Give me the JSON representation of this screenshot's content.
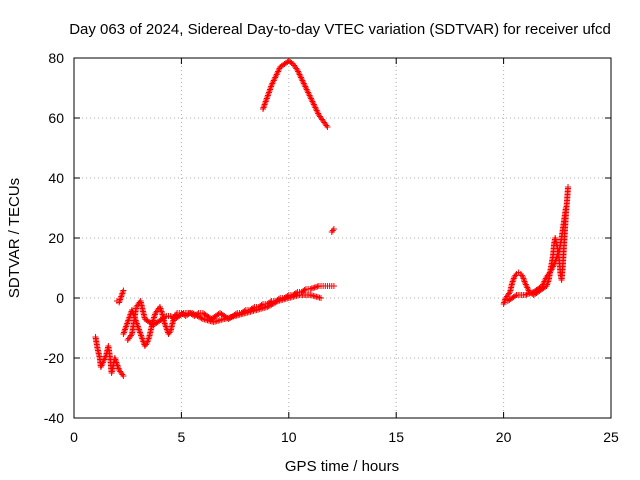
{
  "chart_data": {
    "type": "scatter",
    "title": "Day 063 of 2024, Sidereal Day-to-day VTEC variation (SDTVAR) for receiver ufcd",
    "xlabel": "GPS time / hours",
    "ylabel": "SDTVAR / TECUs",
    "xlim": [
      0,
      25
    ],
    "ylim": [
      -40,
      80
    ],
    "x_ticks": [
      0,
      5,
      10,
      15,
      20,
      25
    ],
    "y_ticks": [
      -40,
      -20,
      0,
      20,
      40,
      60,
      80
    ],
    "x_tick_labels": [
      "0",
      "5",
      "10",
      "15",
      "20",
      "25"
    ],
    "y_tick_labels": [
      "-40",
      "-20",
      "0",
      "20",
      "40",
      "60",
      "80"
    ],
    "grid": true,
    "marker": "+",
    "marker_color": "#ff0000",
    "series": [
      {
        "name": "arc-early-scatter",
        "points": [
          [
            1.0,
            -13
          ],
          [
            1.05,
            -15
          ],
          [
            1.1,
            -17
          ],
          [
            1.2,
            -20
          ],
          [
            1.25,
            -23
          ],
          [
            1.5,
            -19
          ],
          [
            1.6,
            -16
          ],
          [
            1.7,
            -21
          ],
          [
            1.75,
            -25
          ],
          [
            1.9,
            -20
          ],
          [
            2.0,
            -22
          ],
          [
            2.1,
            -24
          ],
          [
            2.2,
            -25
          ],
          [
            2.3,
            -26
          ],
          [
            2.0,
            -1
          ],
          [
            2.1,
            -1.5
          ],
          [
            2.2,
            0.5
          ],
          [
            2.3,
            2.5
          ]
        ]
      },
      {
        "name": "arc-main-rising",
        "points": [
          [
            2.3,
            -12
          ],
          [
            2.4,
            -10
          ],
          [
            2.5,
            -8
          ],
          [
            2.6,
            -6
          ],
          [
            2.7,
            -4
          ],
          [
            2.8,
            -6
          ],
          [
            2.9,
            -8
          ],
          [
            3.0,
            -10
          ],
          [
            3.1,
            -12
          ],
          [
            3.2,
            -14
          ],
          [
            3.3,
            -16
          ],
          [
            3.4,
            -15
          ],
          [
            3.5,
            -13
          ],
          [
            3.6,
            -10
          ],
          [
            3.7,
            -7
          ],
          [
            3.8,
            -5
          ],
          [
            3.9,
            -4
          ],
          [
            4.0,
            -3
          ],
          [
            4.1,
            -5
          ],
          [
            4.2,
            -8
          ],
          [
            4.3,
            -10
          ],
          [
            4.4,
            -12
          ],
          [
            4.5,
            -11
          ],
          [
            4.6,
            -8
          ],
          [
            4.7,
            -6
          ],
          [
            4.8,
            -5
          ],
          [
            5.0,
            -5
          ],
          [
            5.2,
            -6
          ],
          [
            5.4,
            -5
          ],
          [
            5.6,
            -6
          ],
          [
            5.8,
            -5
          ],
          [
            6.0,
            -5
          ],
          [
            6.2,
            -6
          ],
          [
            6.4,
            -7
          ],
          [
            6.6,
            -6
          ],
          [
            6.8,
            -5
          ],
          [
            7.0,
            -6
          ],
          [
            7.2,
            -7
          ],
          [
            7.4,
            -6
          ],
          [
            7.6,
            -5
          ],
          [
            7.8,
            -5
          ],
          [
            8.0,
            -4
          ],
          [
            8.2,
            -4
          ],
          [
            8.4,
            -3
          ],
          [
            8.6,
            -3
          ],
          [
            8.8,
            -2
          ],
          [
            9.0,
            -2
          ],
          [
            9.2,
            -1
          ],
          [
            9.4,
            -1
          ],
          [
            9.6,
            0
          ],
          [
            9.8,
            0
          ],
          [
            10.0,
            1
          ],
          [
            10.2,
            1
          ],
          [
            10.4,
            2
          ],
          [
            10.6,
            2
          ],
          [
            10.8,
            3
          ],
          [
            11.0,
            3
          ],
          [
            11.2,
            3.5
          ],
          [
            11.4,
            4
          ],
          [
            11.6,
            4
          ],
          [
            11.8,
            4
          ],
          [
            12.0,
            4
          ],
          [
            12.1,
            4
          ]
        ]
      },
      {
        "name": "arc-secondary-band",
        "points": [
          [
            2.5,
            -14
          ],
          [
            2.7,
            -12
          ],
          [
            2.9,
            -3
          ],
          [
            3.0,
            -2
          ],
          [
            3.1,
            -1
          ],
          [
            3.2,
            -4
          ],
          [
            3.3,
            -7
          ],
          [
            3.5,
            -8
          ],
          [
            3.7,
            -9
          ],
          [
            3.9,
            -8
          ],
          [
            4.1,
            -7
          ],
          [
            4.3,
            -6
          ],
          [
            4.5,
            -6
          ],
          [
            4.7,
            -7
          ],
          [
            4.9,
            -6
          ],
          [
            5.1,
            -5
          ],
          [
            5.5,
            -5
          ],
          [
            6.0,
            -7
          ],
          [
            6.5,
            -8
          ],
          [
            7.0,
            -7
          ],
          [
            7.5,
            -6
          ],
          [
            8.0,
            -5
          ],
          [
            8.5,
            -4
          ],
          [
            9.0,
            -3
          ],
          [
            9.5,
            -1
          ],
          [
            10.0,
            0
          ],
          [
            10.5,
            1
          ],
          [
            11.0,
            1
          ],
          [
            11.5,
            0
          ]
        ]
      },
      {
        "name": "arc-high-hump",
        "points": [
          [
            8.8,
            63
          ],
          [
            9.0,
            67
          ],
          [
            9.2,
            71
          ],
          [
            9.4,
            74
          ],
          [
            9.6,
            77
          ],
          [
            9.8,
            78
          ],
          [
            10.0,
            79
          ],
          [
            10.2,
            78
          ],
          [
            10.4,
            76
          ],
          [
            10.6,
            73
          ],
          [
            10.8,
            70
          ],
          [
            11.0,
            67
          ],
          [
            11.2,
            64
          ],
          [
            11.4,
            61
          ],
          [
            11.6,
            59
          ],
          [
            11.8,
            57
          ]
        ]
      },
      {
        "name": "arc-isolated",
        "points": [
          [
            12.0,
            22
          ],
          [
            12.1,
            23
          ]
        ]
      },
      {
        "name": "arc-late",
        "points": [
          [
            20.0,
            -2
          ],
          [
            20.1,
            0
          ],
          [
            20.2,
            1
          ],
          [
            20.3,
            2
          ],
          [
            20.4,
            5
          ],
          [
            20.5,
            7
          ],
          [
            20.6,
            8
          ],
          [
            20.7,
            8.5
          ],
          [
            20.8,
            8
          ],
          [
            20.9,
            7
          ],
          [
            21.0,
            5
          ],
          [
            21.2,
            2
          ],
          [
            21.4,
            1
          ],
          [
            21.6,
            2
          ],
          [
            21.8,
            3
          ],
          [
            22.0,
            4
          ],
          [
            22.1,
            6
          ],
          [
            22.2,
            10
          ],
          [
            22.3,
            14
          ],
          [
            22.35,
            18
          ],
          [
            22.4,
            20
          ],
          [
            22.5,
            17
          ],
          [
            22.6,
            12
          ],
          [
            22.65,
            8
          ],
          [
            22.7,
            6
          ],
          [
            22.75,
            10
          ],
          [
            22.8,
            16
          ],
          [
            22.85,
            22
          ],
          [
            22.9,
            28
          ],
          [
            22.95,
            32
          ],
          [
            23.0,
            37
          ],
          [
            20.2,
            -1
          ],
          [
            20.6,
            1
          ],
          [
            21.0,
            1
          ],
          [
            21.4,
            2
          ],
          [
            21.8,
            4
          ],
          [
            22.0,
            7
          ],
          [
            22.2,
            9
          ],
          [
            22.4,
            12
          ],
          [
            22.6,
            16
          ],
          [
            22.7,
            20
          ],
          [
            22.8,
            25
          ],
          [
            22.9,
            30
          ]
        ]
      }
    ]
  }
}
